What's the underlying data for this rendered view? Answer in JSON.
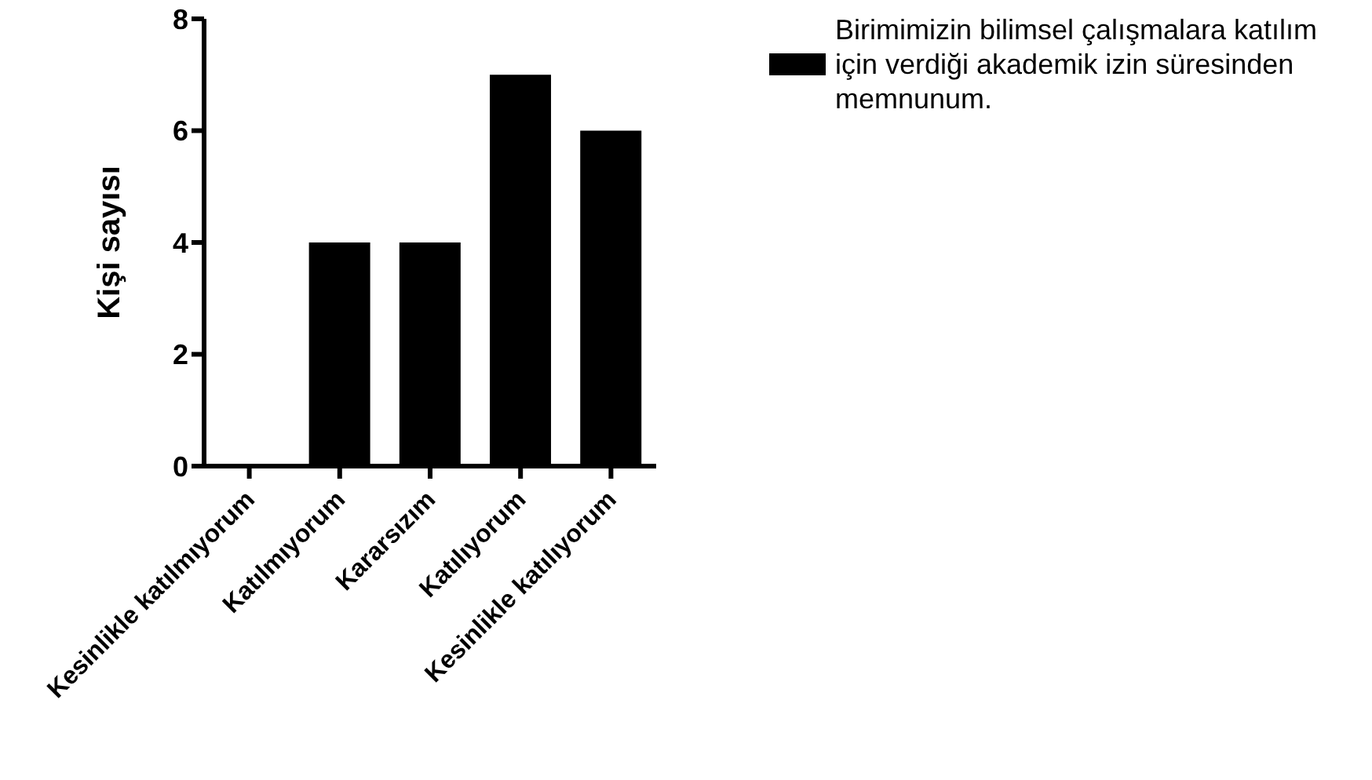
{
  "chart_data": {
    "type": "bar",
    "ylabel": "Kişi sayısı",
    "categories": [
      "Kesinlikle katılmıyorum",
      "Katılmıyorum",
      "Kararsızım",
      "Katılıyorum",
      "Kesinlikle katılıyorum"
    ],
    "series": [
      {
        "name": "Birimimizin bilimsel çalışmalara katılım için verdiği akademik izin süresinden memnunum.",
        "color": "#000000",
        "values": [
          0,
          4,
          4,
          7,
          6
        ]
      }
    ],
    "ylim": [
      0,
      8
    ],
    "yticks": [
      0,
      2,
      4,
      6,
      8
    ],
    "grid": false,
    "legend": "top right"
  }
}
